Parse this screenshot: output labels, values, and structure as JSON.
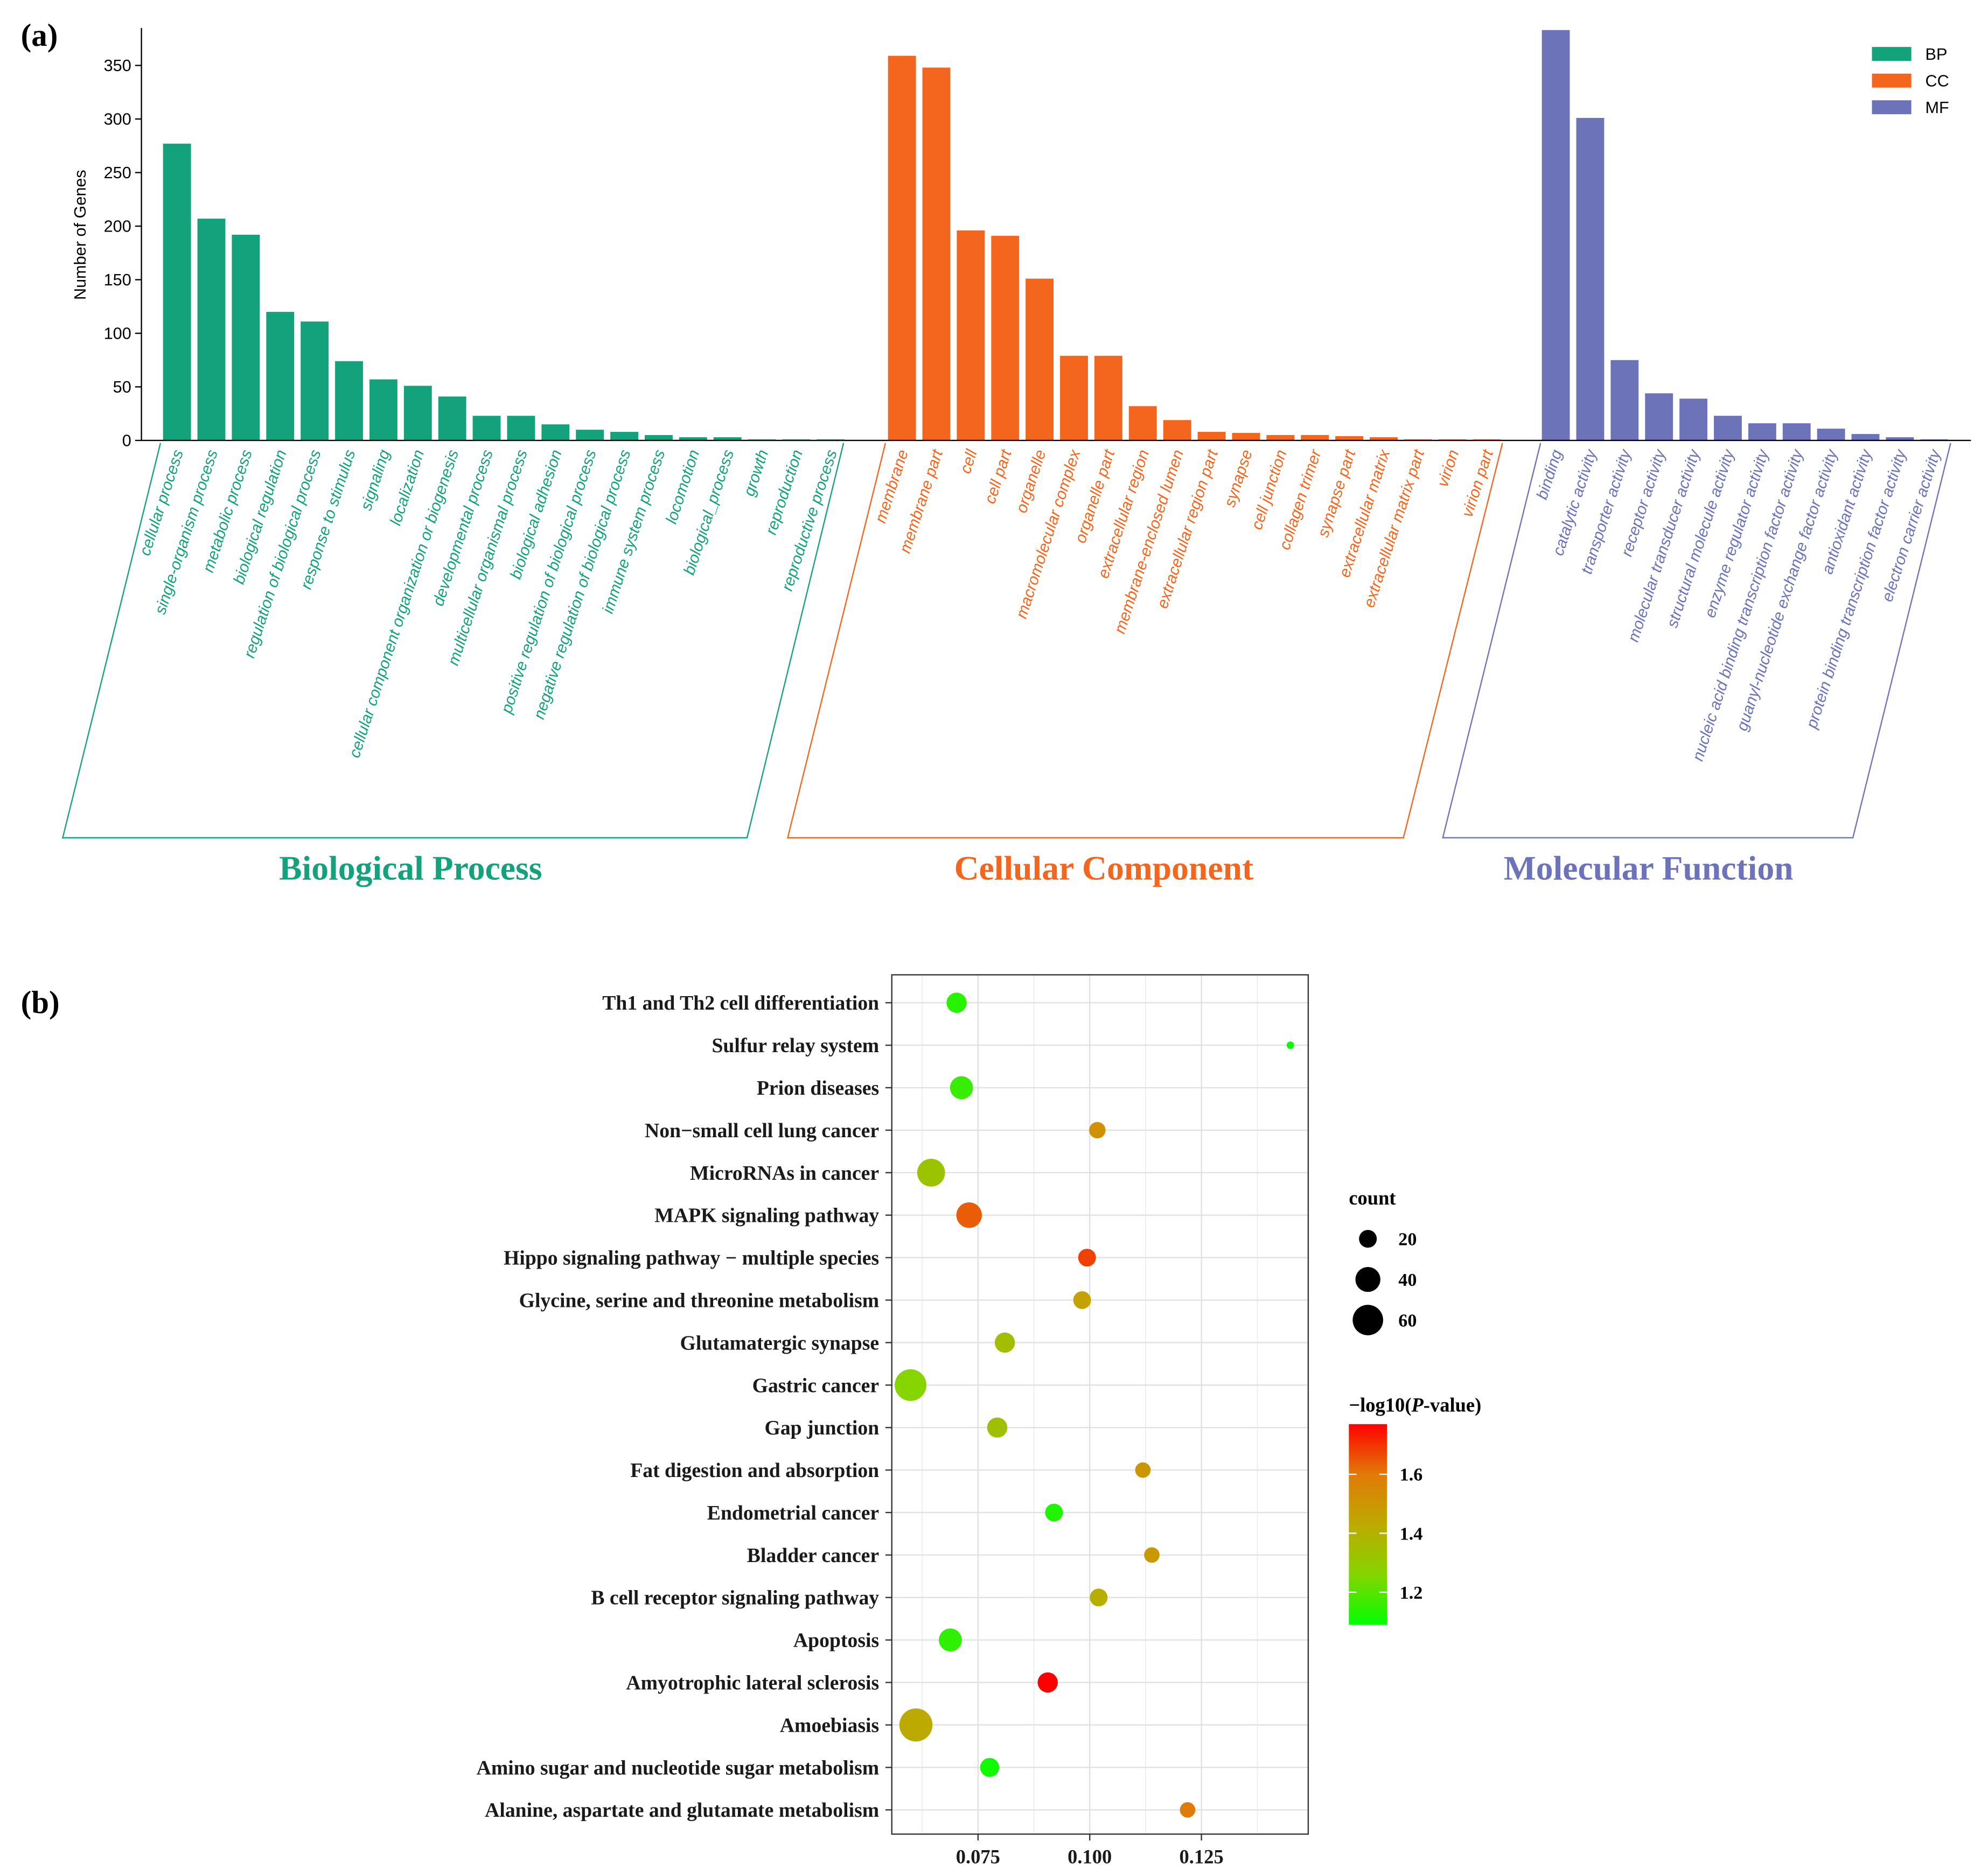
{
  "figure": {
    "panel_labels": [
      "(a)",
      "(b)"
    ]
  },
  "chart_data": [
    {
      "type": "bar",
      "xlabel": "",
      "ylabel": "Number of Genes",
      "ylim": [
        0,
        385
      ],
      "yticks": [
        0,
        50,
        100,
        150,
        200,
        250,
        300,
        350
      ],
      "legend_position": "top-right",
      "series": [
        {
          "name": "BP",
          "group_title": "Biological Process",
          "color": "#14a27c",
          "categories": [
            "cellular process",
            "single-organism process",
            "metabolic process",
            "biological regulation",
            "regulation of biological process",
            "response to stimulus",
            "signaling",
            "localization",
            "cellular component organization or biogenesis",
            "developmental process",
            "multicellular organismal process",
            "biological adhesion",
            "positive regulation of biological process",
            "negative regulation of biological process",
            "immune system process",
            "locomotion",
            "biological_process",
            "growth",
            "reproduction",
            "reproductive process"
          ],
          "values": [
            277,
            207,
            192,
            120,
            111,
            74,
            57,
            51,
            41,
            23,
            23,
            15,
            10,
            8,
            5,
            3,
            3,
            1,
            1,
            1
          ]
        },
        {
          "name": "CC",
          "group_title": "Cellular Component",
          "color": "#f4661e",
          "categories": [
            "membrane",
            "membrane part",
            "cell",
            "cell part",
            "organelle",
            "macromolecular complex",
            "organelle part",
            "extracellular region",
            "membrane-enclosed lumen",
            "extracellular region part",
            "synapse",
            "cell junction",
            "collagen trimer",
            "synapse part",
            "extracellular matrix",
            "extracellular matrix part",
            "virion",
            "virion part"
          ],
          "values": [
            359,
            348,
            196,
            191,
            151,
            79,
            79,
            32,
            19,
            8,
            7,
            5,
            5,
            4,
            3,
            1,
            1,
            1
          ]
        },
        {
          "name": "MF",
          "group_title": "Molecular Function",
          "color": "#6c73b8",
          "categories": [
            "binding",
            "catalytic activity",
            "transporter activity",
            "receptor activity",
            "molecular transducer activity",
            "structural molecule activity",
            "enzyme regulator activity",
            "nucleic acid binding transcription factor activity",
            "guanyl-nucleotide exchange factor activity",
            "antioxidant activity",
            "protein binding transcription factor activity",
            "electron carrier activity"
          ],
          "values": [
            383,
            301,
            75,
            44,
            39,
            23,
            16,
            16,
            11,
            6,
            3,
            1
          ]
        }
      ]
    },
    {
      "type": "scatter",
      "xlabel": "",
      "ylabel": "",
      "categories": [
        "Th1 and Th2 cell differentiation",
        "Sulfur relay system",
        "Prion diseases",
        "Non−small cell lung cancer",
        "MicroRNAs in cancer",
        "MAPK signaling pathway",
        "Hippo signaling pathway − multiple species",
        "Glycine, serine and threonine metabolism",
        "Glutamatergic synapse",
        "Gastric cancer",
        "Gap junction",
        "Fat digestion and absorption",
        "Endometrial cancer",
        "Bladder cancer",
        "B cell receptor signaling pathway",
        "Apoptosis",
        "Amyotrophic lateral sclerosis",
        "Amoebiasis",
        "Amino sugar and nucleotide sugar metabolism",
        "Alanine, aspartate and glutamate metabolism"
      ],
      "x": [
        0.0702,
        0.1449,
        0.0713,
        0.1017,
        0.0645,
        0.073,
        0.0994,
        0.0983,
        0.081,
        0.0599,
        0.0793,
        0.1119,
        0.092,
        0.1139,
        0.102,
        0.0688,
        0.0906,
        0.0611,
        0.0776,
        0.1219
      ],
      "count": [
        26,
        3,
        34,
        17,
        50,
        42,
        20,
        20,
        26,
        65,
        26,
        15,
        20,
        15,
        20,
        34,
        26,
        71,
        23,
        15
      ],
      "neg_log10_p": [
        1.14,
        1.1,
        1.16,
        1.52,
        1.33,
        1.64,
        1.68,
        1.46,
        1.35,
        1.26,
        1.34,
        1.5,
        1.13,
        1.49,
        1.41,
        1.15,
        1.77,
        1.43,
        1.11,
        1.6
      ],
      "xlim": [
        0.0557,
        0.1489
      ],
      "xticks": [
        0.075,
        0.1,
        0.125
      ],
      "xtick_labels": [
        "0.075",
        "0.100",
        "0.125"
      ],
      "legend_position": "right",
      "size_legend": {
        "title": "count",
        "values": [
          20,
          40,
          60
        ]
      },
      "color_legend": {
        "title_parts": [
          {
            "text": "−log10("
          },
          {
            "text": "P",
            "italic": true
          },
          {
            "text": "-value)"
          }
        ],
        "range": [
          1.09,
          1.77
        ],
        "ticks": [
          1.6,
          1.4,
          1.2
        ],
        "tick_labels": [
          "1.6",
          "1.4",
          "1.2"
        ],
        "stops": [
          {
            "value": 1.09,
            "color": "#00ff00"
          },
          {
            "value": 1.26,
            "color": "#86d400"
          },
          {
            "value": 1.43,
            "color": "#bcaa00"
          },
          {
            "value": 1.6,
            "color": "#e27a08"
          },
          {
            "value": 1.77,
            "color": "#ff0000"
          }
        ]
      }
    }
  ]
}
